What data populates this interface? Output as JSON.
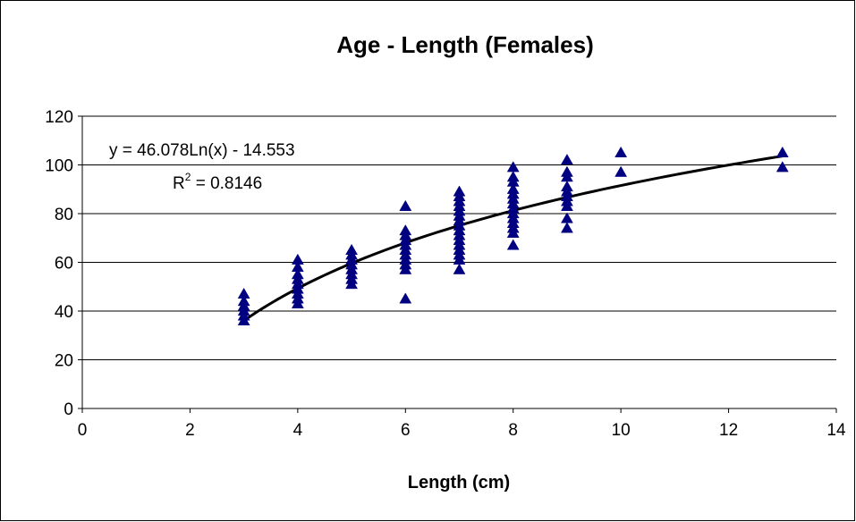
{
  "chart_data": {
    "type": "scatter",
    "title": "Age - Length (Females)",
    "xlabel": "Length (cm)",
    "ylabel": "",
    "xlim": [
      0,
      14
    ],
    "ylim": [
      0,
      120
    ],
    "xticks": [
      "0",
      "2",
      "4",
      "6",
      "8",
      "10",
      "12",
      "14"
    ],
    "yticks": [
      "0",
      "20",
      "40",
      "60",
      "80",
      "100",
      "120"
    ],
    "xtick_values": [
      0,
      2,
      4,
      6,
      8,
      10,
      12,
      14
    ],
    "ytick_values": [
      0,
      20,
      40,
      60,
      80,
      100,
      120
    ],
    "grid": "horizontal",
    "marker": "triangle",
    "marker_color": "#000080",
    "line_color": "#000000",
    "points": [
      [
        3,
        36
      ],
      [
        3,
        38
      ],
      [
        3,
        40
      ],
      [
        3,
        42
      ],
      [
        3,
        44
      ],
      [
        3,
        47
      ],
      [
        4,
        43
      ],
      [
        4,
        45
      ],
      [
        4,
        47
      ],
      [
        4,
        49
      ],
      [
        4,
        51
      ],
      [
        4,
        53
      ],
      [
        4,
        55
      ],
      [
        4,
        58
      ],
      [
        4,
        61
      ],
      [
        5,
        51
      ],
      [
        5,
        53
      ],
      [
        5,
        55
      ],
      [
        5,
        57
      ],
      [
        5,
        59
      ],
      [
        5,
        61
      ],
      [
        5,
        63
      ],
      [
        5,
        65
      ],
      [
        6,
        45
      ],
      [
        6,
        57
      ],
      [
        6,
        59
      ],
      [
        6,
        61
      ],
      [
        6,
        63
      ],
      [
        6,
        65
      ],
      [
        6,
        67
      ],
      [
        6,
        69
      ],
      [
        6,
        71
      ],
      [
        6,
        73
      ],
      [
        6,
        83
      ],
      [
        7,
        57
      ],
      [
        7,
        61
      ],
      [
        7,
        63
      ],
      [
        7,
        65
      ],
      [
        7,
        67
      ],
      [
        7,
        69
      ],
      [
        7,
        71
      ],
      [
        7,
        73
      ],
      [
        7,
        75
      ],
      [
        7,
        77
      ],
      [
        7,
        79
      ],
      [
        7,
        81
      ],
      [
        7,
        83
      ],
      [
        7,
        85
      ],
      [
        7,
        87
      ],
      [
        7,
        89
      ],
      [
        8,
        67
      ],
      [
        8,
        72
      ],
      [
        8,
        74
      ],
      [
        8,
        76
      ],
      [
        8,
        78
      ],
      [
        8,
        80
      ],
      [
        8,
        82
      ],
      [
        8,
        84
      ],
      [
        8,
        86
      ],
      [
        8,
        88
      ],
      [
        8,
        90
      ],
      [
        8,
        93
      ],
      [
        8,
        95
      ],
      [
        8,
        99
      ],
      [
        9,
        74
      ],
      [
        9,
        78
      ],
      [
        9,
        83
      ],
      [
        9,
        85
      ],
      [
        9,
        87
      ],
      [
        9,
        89
      ],
      [
        9,
        91
      ],
      [
        9,
        95
      ],
      [
        9,
        97
      ],
      [
        9,
        102
      ],
      [
        10,
        97
      ],
      [
        10,
        105
      ],
      [
        13,
        99
      ],
      [
        13,
        105
      ]
    ],
    "trendline": {
      "type": "logarithmic",
      "a": 46.078,
      "b": -14.553,
      "x_range": [
        3,
        13
      ],
      "equation": "y = 46.078Ln(x) - 14.553",
      "r2_label": "R",
      "r2_sup": "2",
      "r2_value": " = 0.8146"
    }
  }
}
